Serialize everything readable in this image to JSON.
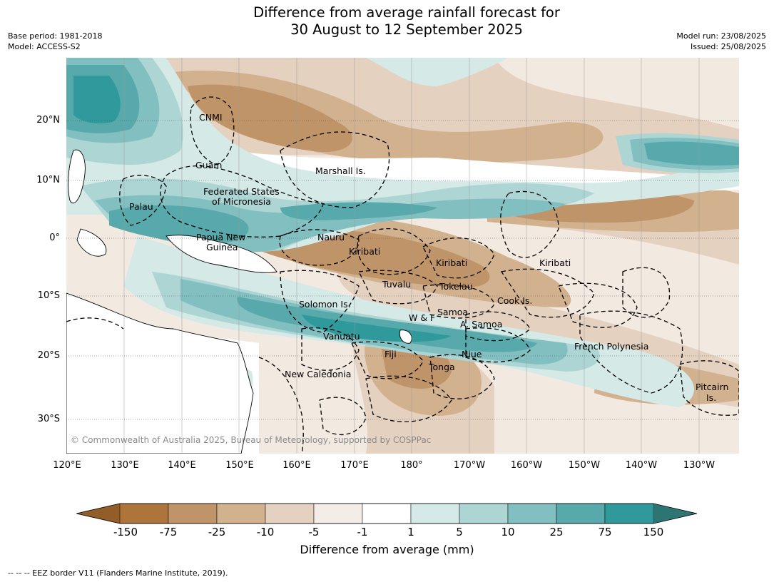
{
  "title_line1": "Difference from average rainfall forecast for",
  "title_line2": "30 August to 12 September 2025",
  "meta_left": {
    "base_period": "Base period: 1981-2018",
    "model": "Model: ACCESS-S2"
  },
  "meta_right": {
    "model_run": "Model run: 23/08/2025",
    "issued": "Issued: 25/08/2025"
  },
  "lat_labels": [
    "20°N",
    "10°N",
    "0°",
    "10°S",
    "20°S",
    "30°S"
  ],
  "lon_labels": [
    "120°E",
    "130°E",
    "140°E",
    "150°E",
    "160°E",
    "170°E",
    "180°",
    "170°W",
    "160°W",
    "150°W",
    "140°W",
    "130°W"
  ],
  "place_labels": [
    "CNMI",
    "Guam",
    "Marshall Is.",
    "Federated States",
    "of Micronesia",
    "Palau",
    "Papua New",
    "Guinea",
    "Nauru",
    "Kiribati",
    "Kiribati",
    "Kiribati",
    "Tuvalu",
    "Tokelau",
    "Cook Is.",
    "Solomon Is.",
    "W & F",
    "Samoa",
    "A. Samoa",
    "Vanuatu",
    "Fiji",
    "Niue",
    "Tonga",
    "French Polynesia",
    "New Caledonia",
    "Pitcairn",
    "Is."
  ],
  "copyright": "© Commonwealth of Australia 2025, Bureau of Meteorology, supported by COSPPac",
  "colorbar": {
    "ticks": [
      "-150",
      "-75",
      "-25",
      "-10",
      "-5",
      "-1",
      "1",
      "5",
      "10",
      "25",
      "75",
      "150"
    ],
    "colors": [
      "#935d29",
      "#ad743b",
      "#bf9468",
      "#d2b18f",
      "#e4d1bf",
      "#f4ece6",
      "#ffffff",
      "#d5e9e7",
      "#acd5d4",
      "#82bfc1",
      "#57a9ab",
      "#30999b",
      "#2d7573"
    ],
    "label": "Difference from average (mm)"
  },
  "eez_note": "--  --  -- EEZ border V11 (Flanders Marine Institute, 2019)."
}
